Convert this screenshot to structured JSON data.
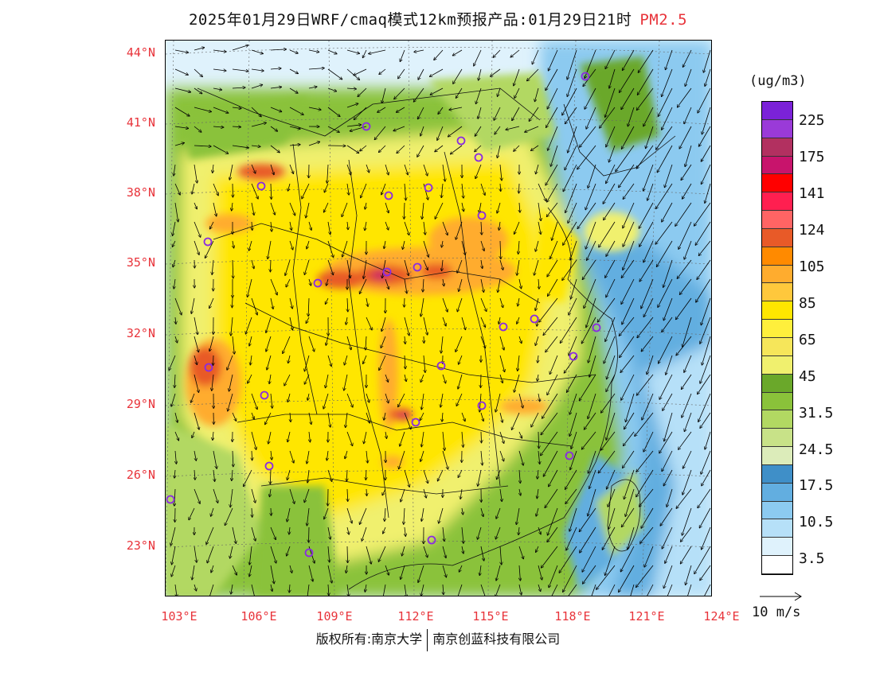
{
  "title": {
    "main": "2025年01月29日WRF/cmaq模式12km预报产品:01月29日21时",
    "species": "PM2.5"
  },
  "axes": {
    "lat_labels": [
      "44°N",
      "41°N",
      "38°N",
      "35°N",
      "32°N",
      "29°N",
      "26°N",
      "23°N"
    ],
    "lon_labels": [
      "103°E",
      "106°E",
      "109°E",
      "112°E",
      "115°E",
      "118°E",
      "121°E",
      "124°E"
    ]
  },
  "colorbar": {
    "units": "(ug/m3)",
    "colors": [
      "#7b22d8",
      "#9a3ad8",
      "#b23060",
      "#c8146c",
      "#ff0000",
      "#ff1f50",
      "#ff6464",
      "#e85a28",
      "#ff8a00",
      "#ffac2e",
      "#ffc83c",
      "#ffe600",
      "#ffef3c",
      "#f6e65a",
      "#f0f06e",
      "#6aa82a",
      "#8ac23a",
      "#b2d862",
      "#c8e288",
      "#dcecba",
      "#3f8fc8",
      "#62aee0",
      "#8ccaf0",
      "#b6e0f8",
      "#dff2fc",
      "#ffffff"
    ],
    "labels": [
      "225",
      "175",
      "141",
      "124",
      "105",
      "85",
      "65",
      "45",
      "31.5",
      "24.5",
      "17.5",
      "10.5",
      "3.5"
    ]
  },
  "wind_reference": {
    "label": "10 m/s"
  },
  "footer": {
    "left": "版权所有:南京大学",
    "right": "南京创蓝科技有限公司"
  },
  "colors": {
    "accent_red": "#e8333a"
  }
}
